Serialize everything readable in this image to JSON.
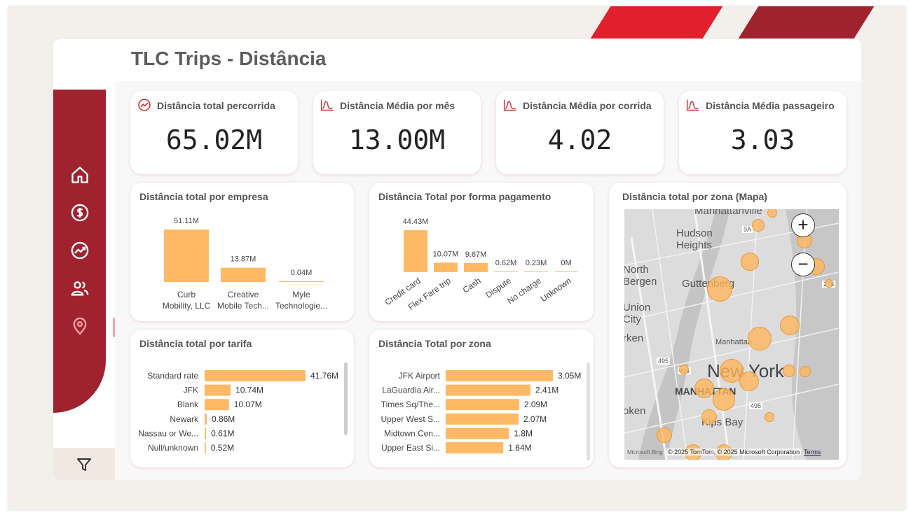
{
  "header": {
    "title": "TLC Trips - Distância"
  },
  "sidebar": {
    "icons": [
      "home-icon",
      "dollar-icon",
      "trend-icon",
      "users-icon",
      "location-icon"
    ],
    "filter_icon": "filter-icon"
  },
  "colors": {
    "accent": "#a0222f",
    "accent_bright": "#e21f2d",
    "bar": "#ffb964",
    "bg": "#f3efea"
  },
  "kpis": [
    {
      "label": "Distância total percorrida",
      "value": "65.02M",
      "icon": "trend-icon"
    },
    {
      "label": "Distância Média por mês",
      "value": "13.00M",
      "icon": "bell-curve-icon"
    },
    {
      "label": "Distância Média por corrida",
      "value": "4.02",
      "icon": "bell-curve-icon"
    },
    {
      "label": "Distância Média passageiro",
      "value": "3.03",
      "icon": "bell-curve-icon"
    }
  ],
  "chart_data": [
    {
      "type": "bar",
      "title": "Distância total por empresa",
      "categories": [
        "Curb Mobility, LLC",
        "Creative Mobile Tech...",
        "Myle Technologie..."
      ],
      "category_lines": [
        [
          "Curb",
          "Mobility, LLC"
        ],
        [
          "Creative",
          "Mobile Tech..."
        ],
        [
          "Myle",
          "Technologie..."
        ]
      ],
      "values": [
        51.11,
        13.87,
        0.04
      ],
      "labels": [
        "51.11M",
        "13.87M",
        "0.04M"
      ],
      "ylim": [
        0,
        51.11
      ]
    },
    {
      "type": "bar",
      "title": "Distância Total por forma pagamento",
      "categories": [
        "Credit card",
        "Flex Fare trip",
        "Cash",
        "Dispute",
        "No charge",
        "Unknown"
      ],
      "values": [
        44.43,
        10.07,
        9.67,
        0.62,
        0.23,
        0
      ],
      "labels": [
        "44.43M",
        "10.07M",
        "9.67M",
        "0.62M",
        "0.23M",
        "0M"
      ],
      "ylim": [
        0,
        44.43
      ]
    },
    {
      "type": "bar",
      "orientation": "horizontal",
      "title": "Distância total por tarifa",
      "categories": [
        "Standard rate",
        "JFK",
        "Blank",
        "Newark",
        "Nassau or We...",
        "Null/unknown"
      ],
      "values": [
        41.76,
        10.74,
        10.07,
        0.86,
        0.61,
        0.52
      ],
      "labels": [
        "41.76M",
        "10.74M",
        "10.07M",
        "0.86M",
        "0.61M",
        "0.52M"
      ],
      "xlim": [
        0,
        41.76
      ]
    },
    {
      "type": "bar",
      "orientation": "horizontal",
      "title": "Distância Total por zona",
      "categories": [
        "JFK Airport",
        "LaGuardia Air...",
        "Times Sq/The...",
        "Upper West S...",
        "Midtown Cen...",
        "Upper East Si..."
      ],
      "values": [
        3.05,
        2.41,
        2.09,
        2.07,
        1.8,
        1.64
      ],
      "labels": [
        "3.05M",
        "2.41M",
        "2.09M",
        "2.07M",
        "1.8M",
        "1.64M"
      ],
      "xlim": [
        0,
        3.05
      ]
    }
  ],
  "map": {
    "title": "Distância total por zona (Mapa)",
    "place_labels": [
      "Manhattanville",
      "Hudson Heights",
      "North Bergen",
      "Guttenberg",
      "Union City",
      "Manhattan",
      "New York",
      "MANHATTAN",
      "Kips Bay",
      "oken",
      "rken"
    ],
    "road_labels": [
      "9A",
      "495",
      "495",
      "495",
      "278"
    ],
    "zoom_in": "+",
    "zoom_out": "−",
    "attribution": "© 2025 TomTom, © 2025 Microsoft Corporation",
    "terms": "Terms",
    "provider": "Microsoft Bing"
  }
}
